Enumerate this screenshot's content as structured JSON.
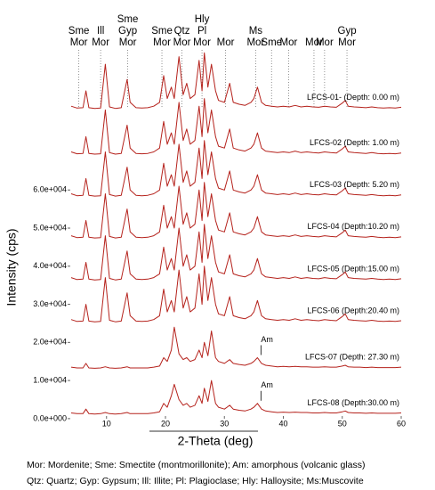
{
  "chart_data": {
    "type": "line",
    "x_label": "2-Theta (deg)",
    "y_label": "Intensity (cps)",
    "xlim": [
      4,
      60
    ],
    "xticks": [
      10,
      20,
      30,
      40,
      50,
      60
    ],
    "ylim": [
      -3300,
      97000
    ],
    "yticks": [
      {
        "value": 0,
        "label": "0.0e+000"
      },
      {
        "value": 10000,
        "label": "1.0e+004"
      },
      {
        "value": 20000,
        "label": "2.0e+004"
      },
      {
        "value": 30000,
        "label": "3.0e+004"
      },
      {
        "value": 40000,
        "label": "4.0e+004"
      },
      {
        "value": 50000,
        "label": "5.0e+004"
      },
      {
        "value": 60000,
        "label": "6.0e+004"
      }
    ],
    "grid": false,
    "x": [
      4,
      5,
      6,
      6.5,
      7,
      8,
      9,
      9.8,
      10.5,
      11.5,
      12.5,
      13.5,
      14,
      15,
      16,
      17,
      18,
      19,
      19.7,
      20.3,
      21,
      21.5,
      22.3,
      23,
      23.6,
      24.2,
      25,
      25.7,
      26.2,
      26.6,
      27.2,
      27.8,
      28.5,
      29,
      30,
      30.9,
      31.5,
      32.5,
      33.5,
      34.5,
      35,
      35.6,
      36.3,
      37,
      38,
      39,
      40,
      41,
      42,
      43,
      44,
      45,
      46,
      47,
      48,
      49,
      50,
      50.5,
      51,
      52,
      53,
      54,
      55,
      56,
      57,
      58,
      59,
      60
    ],
    "series": [
      {
        "name": "LFCS-01- (Depth: 0.00 m)",
        "color": "#b5221c",
        "values": [
          82000,
          81500,
          81600,
          86000,
          81600,
          81400,
          81500,
          93000,
          81800,
          81400,
          81600,
          89000,
          83000,
          81600,
          81500,
          81600,
          82000,
          83000,
          90000,
          84000,
          87000,
          84000,
          95000,
          85000,
          88000,
          84000,
          85000,
          94000,
          86000,
          96000,
          87000,
          93000,
          86000,
          83500,
          83000,
          88000,
          83000,
          82500,
          82200,
          83000,
          84000,
          87000,
          83000,
          82200,
          82000,
          81800,
          82000,
          81800,
          82200,
          81800,
          82000,
          81800,
          81700,
          82000,
          81800,
          81700,
          82800,
          83500,
          82000,
          81800,
          81700,
          81600,
          81800,
          81600,
          81500,
          81600,
          81500,
          81700
        ]
      },
      {
        "name": "LFCS-02 (Depth: 1.00 m)",
        "color": "#b5221c",
        "values": [
          70000,
          69500,
          69600,
          74000,
          69600,
          69400,
          69500,
          81000,
          69800,
          69400,
          69600,
          77000,
          71000,
          69600,
          69500,
          69600,
          70000,
          71000,
          78000,
          72000,
          75000,
          72000,
          83000,
          73000,
          76000,
          72000,
          73000,
          82000,
          74000,
          84000,
          75000,
          81000,
          74000,
          71500,
          71000,
          76000,
          71000,
          70500,
          70200,
          71000,
          72000,
          75000,
          71000,
          70200,
          70000,
          69800,
          70000,
          69800,
          70200,
          69800,
          70000,
          69800,
          69700,
          70000,
          69800,
          69700,
          70800,
          71500,
          70000,
          69800,
          69700,
          69600,
          69800,
          69600,
          69500,
          69600,
          69500,
          69700
        ]
      },
      {
        "name": "LFCS-03 (Depth: 5.20 m)",
        "color": "#b5221c",
        "values": [
          59000,
          58500,
          58600,
          63000,
          58600,
          58400,
          58500,
          70000,
          58800,
          58400,
          58600,
          66000,
          60000,
          58600,
          58500,
          58600,
          59000,
          60000,
          67000,
          61000,
          64000,
          61000,
          72000,
          62000,
          65000,
          61000,
          62000,
          71000,
          63000,
          73000,
          64000,
          70000,
          63000,
          60500,
          60000,
          65000,
          60000,
          59500,
          59200,
          60000,
          61000,
          64000,
          60000,
          59200,
          59000,
          58800,
          59000,
          58800,
          59200,
          58800,
          59000,
          58800,
          58700,
          59000,
          58800,
          58700,
          59800,
          60500,
          59000,
          58800,
          58700,
          58600,
          58800,
          58600,
          58500,
          58600,
          58500,
          58700
        ]
      },
      {
        "name": "LFCS-04 (Depth:10.20 m)",
        "color": "#b5221c",
        "values": [
          48000,
          47500,
          47600,
          52000,
          47600,
          47400,
          47500,
          59000,
          47800,
          47400,
          47600,
          55000,
          49000,
          47600,
          47500,
          47600,
          48000,
          49000,
          56000,
          50000,
          53000,
          50000,
          61000,
          51000,
          54000,
          50000,
          51000,
          60000,
          52000,
          62000,
          53000,
          59000,
          52000,
          49500,
          49000,
          54000,
          49000,
          48500,
          48200,
          49000,
          50000,
          53000,
          49000,
          48200,
          48000,
          47800,
          48000,
          47800,
          48200,
          47800,
          48000,
          47800,
          47700,
          48000,
          47800,
          47700,
          48800,
          49500,
          48000,
          47800,
          47700,
          47600,
          47800,
          47600,
          47500,
          47600,
          47500,
          47700
        ]
      },
      {
        "name": "LFCS-05 (Depth:15.00 m)",
        "color": "#b5221c",
        "values": [
          37000,
          36500,
          36600,
          41000,
          36600,
          36400,
          36500,
          48000,
          36800,
          36400,
          36600,
          44000,
          38000,
          36600,
          36500,
          36600,
          37000,
          38000,
          45000,
          39000,
          42000,
          39000,
          50000,
          40000,
          43000,
          39000,
          40000,
          49000,
          41000,
          51000,
          42000,
          48000,
          41000,
          38500,
          38000,
          43000,
          38000,
          37500,
          37200,
          38000,
          39000,
          42000,
          38000,
          37200,
          37000,
          36800,
          37000,
          36800,
          37200,
          36800,
          37000,
          36800,
          36700,
          37000,
          36800,
          36700,
          37800,
          38500,
          37000,
          36800,
          36700,
          36600,
          36800,
          36600,
          36500,
          36600,
          36500,
          36700
        ]
      },
      {
        "name": "LFCS-06 (Depth:20.40 m)",
        "color": "#b5221c",
        "values": [
          26000,
          25500,
          25600,
          30000,
          25600,
          25400,
          25500,
          37000,
          25800,
          25400,
          25600,
          33000,
          27000,
          25600,
          25500,
          25600,
          26000,
          27000,
          34000,
          28000,
          31000,
          28000,
          39000,
          29000,
          32000,
          28000,
          29000,
          38000,
          30000,
          40000,
          31000,
          37000,
          30000,
          27500,
          27000,
          32000,
          27000,
          26500,
          26200,
          27000,
          28000,
          31000,
          27000,
          26200,
          26000,
          25800,
          26000,
          25800,
          26200,
          25800,
          26000,
          25800,
          25700,
          26000,
          25800,
          25700,
          26800,
          27500,
          26000,
          25800,
          25700,
          25600,
          25800,
          25600,
          25500,
          25600,
          25500,
          25700
        ]
      },
      {
        "name": "LFCS-07 (Depth: 27.30 m)",
        "color": "#b5221c",
        "annotations": [
          {
            "text": "Am",
            "x": 35.6
          }
        ],
        "values": [
          13500,
          13300,
          13300,
          14500,
          13300,
          13200,
          13300,
          13600,
          13300,
          13200,
          13300,
          13600,
          13300,
          13300,
          13300,
          13300,
          13500,
          13800,
          16000,
          15000,
          18000,
          24000,
          17000,
          15500,
          16000,
          15000,
          15500,
          18000,
          16000,
          20000,
          16500,
          23000,
          16000,
          15000,
          14500,
          15500,
          14500,
          14200,
          14000,
          14500,
          15000,
          16000,
          14500,
          14000,
          13800,
          13600,
          13700,
          13600,
          13700,
          13600,
          13600,
          13500,
          13500,
          13600,
          13500,
          13500,
          13800,
          14000,
          13600,
          13500,
          13500,
          13400,
          13500,
          13400,
          13400,
          13400,
          13400,
          13500
        ]
      },
      {
        "name": "LFCS-08 (Depth:30.00 m)",
        "color": "#b5221c",
        "annotations": [
          {
            "text": "Am",
            "x": 35.6
          }
        ],
        "values": [
          1500,
          1300,
          1300,
          2500,
          1300,
          1200,
          1300,
          1600,
          1300,
          1200,
          1300,
          1600,
          1300,
          1300,
          1300,
          1300,
          1500,
          1800,
          4000,
          3000,
          6000,
          9000,
          5000,
          3500,
          4000,
          3000,
          3500,
          6000,
          4000,
          8000,
          4500,
          10000,
          4000,
          3000,
          2500,
          3500,
          2500,
          2200,
          2000,
          2500,
          3000,
          4000,
          2500,
          2000,
          1800,
          1600,
          1700,
          1600,
          1700,
          1600,
          1600,
          1500,
          1500,
          1600,
          1500,
          1500,
          1800,
          2000,
          1600,
          1500,
          1500,
          1400,
          1500,
          1400,
          1400,
          1400,
          1400,
          1500
        ]
      }
    ],
    "peak_labels": [
      {
        "x": 5.3,
        "labels": [
          "Sme",
          "Mor"
        ]
      },
      {
        "x": 9,
        "labels": [
          "Ill",
          "Mor"
        ]
      },
      {
        "x": 13.6,
        "labels": [
          "Sme",
          "Gyp",
          "Mor"
        ]
      },
      {
        "x": 19.4,
        "labels": [
          "Sme",
          "Mor"
        ]
      },
      {
        "x": 22.8,
        "labels": [
          "Qtz",
          "Mor"
        ]
      },
      {
        "x": 26.2,
        "labels": [
          "Hly",
          "Pl",
          "Mor"
        ]
      },
      {
        "x": 30.2,
        "labels": [
          "Mor"
        ]
      },
      {
        "x": 35.3,
        "labels": [
          "Ms",
          "Mor"
        ]
      },
      {
        "x": 38,
        "labels": [
          "Sme"
        ]
      },
      {
        "x": 40.9,
        "labels": [
          "Mor"
        ]
      },
      {
        "x": 45.2,
        "labels": [
          "Mor"
        ]
      },
      {
        "x": 47,
        "labels": [
          "Mor"
        ]
      },
      {
        "x": 50.8,
        "labels": [
          "Gyp",
          "Mor"
        ]
      }
    ],
    "notes": [
      "Mor: Mordenite; Sme: Smectite (montmorillonite); Am: amorphous (volcanic glass)",
      "Qtz: Quartz; Gyp: Gypsum; Ill: Illite; Pl: Plagioclase; Hly: Halloysite; Ms:Muscovite"
    ]
  }
}
